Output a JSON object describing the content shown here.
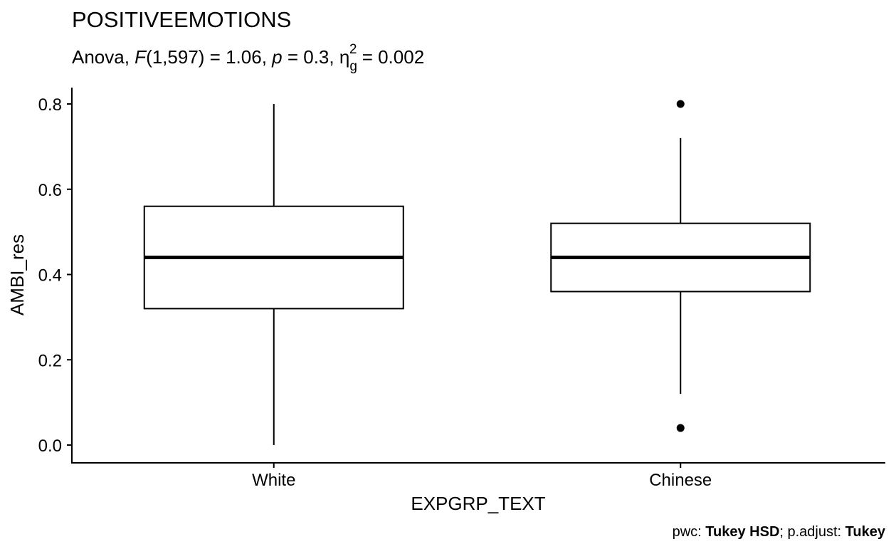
{
  "chart_data": {
    "type": "box",
    "title": "POSITIVEEMOTIONS",
    "subtitle": {
      "prefix": "Anova, ",
      "stat_name": "F",
      "df": "(1,597)",
      "stat_value": " = 1.06, ",
      "p_symbol": "p",
      "p_value": " = 0.3, ",
      "effect_symbol": "η",
      "effect_sub": "g",
      "effect_sup": "2",
      "effect_value": " = 0.002"
    },
    "xlabel": "EXPGRP_TEXT",
    "ylabel": "AMBI_res",
    "categories": [
      "White",
      "Chinese"
    ],
    "yticks": [
      "0.0",
      "0.2",
      "0.4",
      "0.6",
      "0.8"
    ],
    "ylim": [
      -0.04,
      0.84
    ],
    "boxes": [
      {
        "group": "White",
        "lower_whisker": 0.0,
        "q1": 0.32,
        "median": 0.44,
        "q3": 0.56,
        "upper_whisker": 0.8,
        "outliers": []
      },
      {
        "group": "Chinese",
        "lower_whisker": 0.12,
        "q1": 0.36,
        "median": 0.44,
        "q3": 0.52,
        "upper_whisker": 0.72,
        "outliers": [
          0.8,
          0.04
        ]
      }
    ],
    "grid": false,
    "caption": {
      "part1": "pwc: ",
      "bold1": "Tukey HSD",
      "part2": "; p.adjust: ",
      "bold2": "Tukey"
    }
  }
}
